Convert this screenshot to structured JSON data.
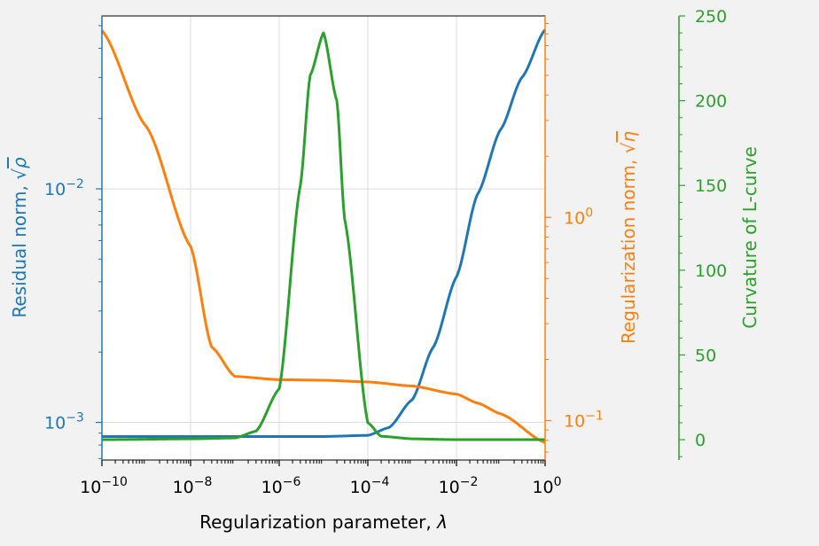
{
  "chart_data": {
    "type": "line",
    "title": "",
    "xscale": "log",
    "xlim": [
      1e-10,
      1
    ],
    "xlabel": "Regularization parameter, ",
    "xlabel_symbol": "λ",
    "x_ticks": [
      {
        "base": "10",
        "exp": "−10",
        "value": 1e-10
      },
      {
        "base": "10",
        "exp": "−8",
        "value": 1e-08
      },
      {
        "base": "10",
        "exp": "−6",
        "value": 1e-06
      },
      {
        "base": "10",
        "exp": "−4",
        "value": 0.0001
      },
      {
        "base": "10",
        "exp": "−2",
        "value": 0.01
      },
      {
        "base": "10",
        "exp": "0",
        "value": 1
      }
    ],
    "grid": true,
    "axes": {
      "residual": {
        "side": "left",
        "scale": "log",
        "ylim": [
          0.00069,
          0.055
        ],
        "label": "Residual norm, ",
        "label_symbol": "ρ",
        "color": "#1f77b4",
        "ticks": [
          {
            "base": "10",
            "exp": "−3",
            "value": 0.001
          },
          {
            "base": "10",
            "exp": "−2",
            "value": 0.01
          }
        ]
      },
      "regularization": {
        "side": "right",
        "scale": "log",
        "ylim": [
          0.064,
          9.8
        ],
        "label": "Regularization norm, ",
        "label_symbol": "η",
        "color": "#ff7f0e",
        "ticks": [
          {
            "base": "10",
            "exp": "−1",
            "value": 0.1
          },
          {
            "base": "10",
            "exp": "0",
            "value": 1
          }
        ]
      },
      "curvature": {
        "side": "right-offset",
        "scale": "linear",
        "ylim": [
          -12,
          250
        ],
        "label": "Curvature of L-curve",
        "color": "#2ca02c",
        "ticks": [
          {
            "label": "0",
            "value": 0
          },
          {
            "label": "50",
            "value": 50
          },
          {
            "label": "100",
            "value": 100
          },
          {
            "label": "150",
            "value": 150
          },
          {
            "label": "200",
            "value": 200
          },
          {
            "label": "250",
            "value": 250
          }
        ]
      }
    },
    "series": [
      {
        "axis": "residual",
        "color": "#1f77b4",
        "x": [
          1e-10,
          1e-08,
          1e-06,
          1e-05,
          0.0001,
          0.0003,
          0.001,
          0.003,
          0.01,
          0.03,
          0.1,
          0.3,
          1
        ],
        "values": [
          0.00087,
          0.00087,
          0.00087,
          0.00087,
          0.00088,
          0.00095,
          0.00125,
          0.0021,
          0.0042,
          0.0095,
          0.018,
          0.03,
          0.048
        ]
      },
      {
        "axis": "regularization",
        "color": "#ff7f0e",
        "x": [
          1e-10,
          1e-09,
          1e-08,
          3e-08,
          1e-07,
          1e-06,
          1e-05,
          0.0001,
          0.001,
          0.01,
          0.03,
          0.1,
          1
        ],
        "values": [
          8.3,
          2.8,
          0.72,
          0.23,
          0.165,
          0.159,
          0.158,
          0.155,
          0.148,
          0.135,
          0.122,
          0.108,
          0.078
        ]
      },
      {
        "axis": "curvature",
        "color": "#2ca02c",
        "x": [
          1e-10,
          1e-08,
          1e-07,
          3e-07,
          1e-06,
          3e-06,
          5e-06,
          1e-05,
          2e-05,
          3e-05,
          0.0001,
          0.0002,
          0.001,
          0.01,
          1
        ],
        "values": [
          0,
          0.5,
          1,
          5,
          30,
          150,
          215,
          240,
          200,
          130,
          10,
          2,
          0.5,
          0,
          0
        ]
      }
    ]
  }
}
